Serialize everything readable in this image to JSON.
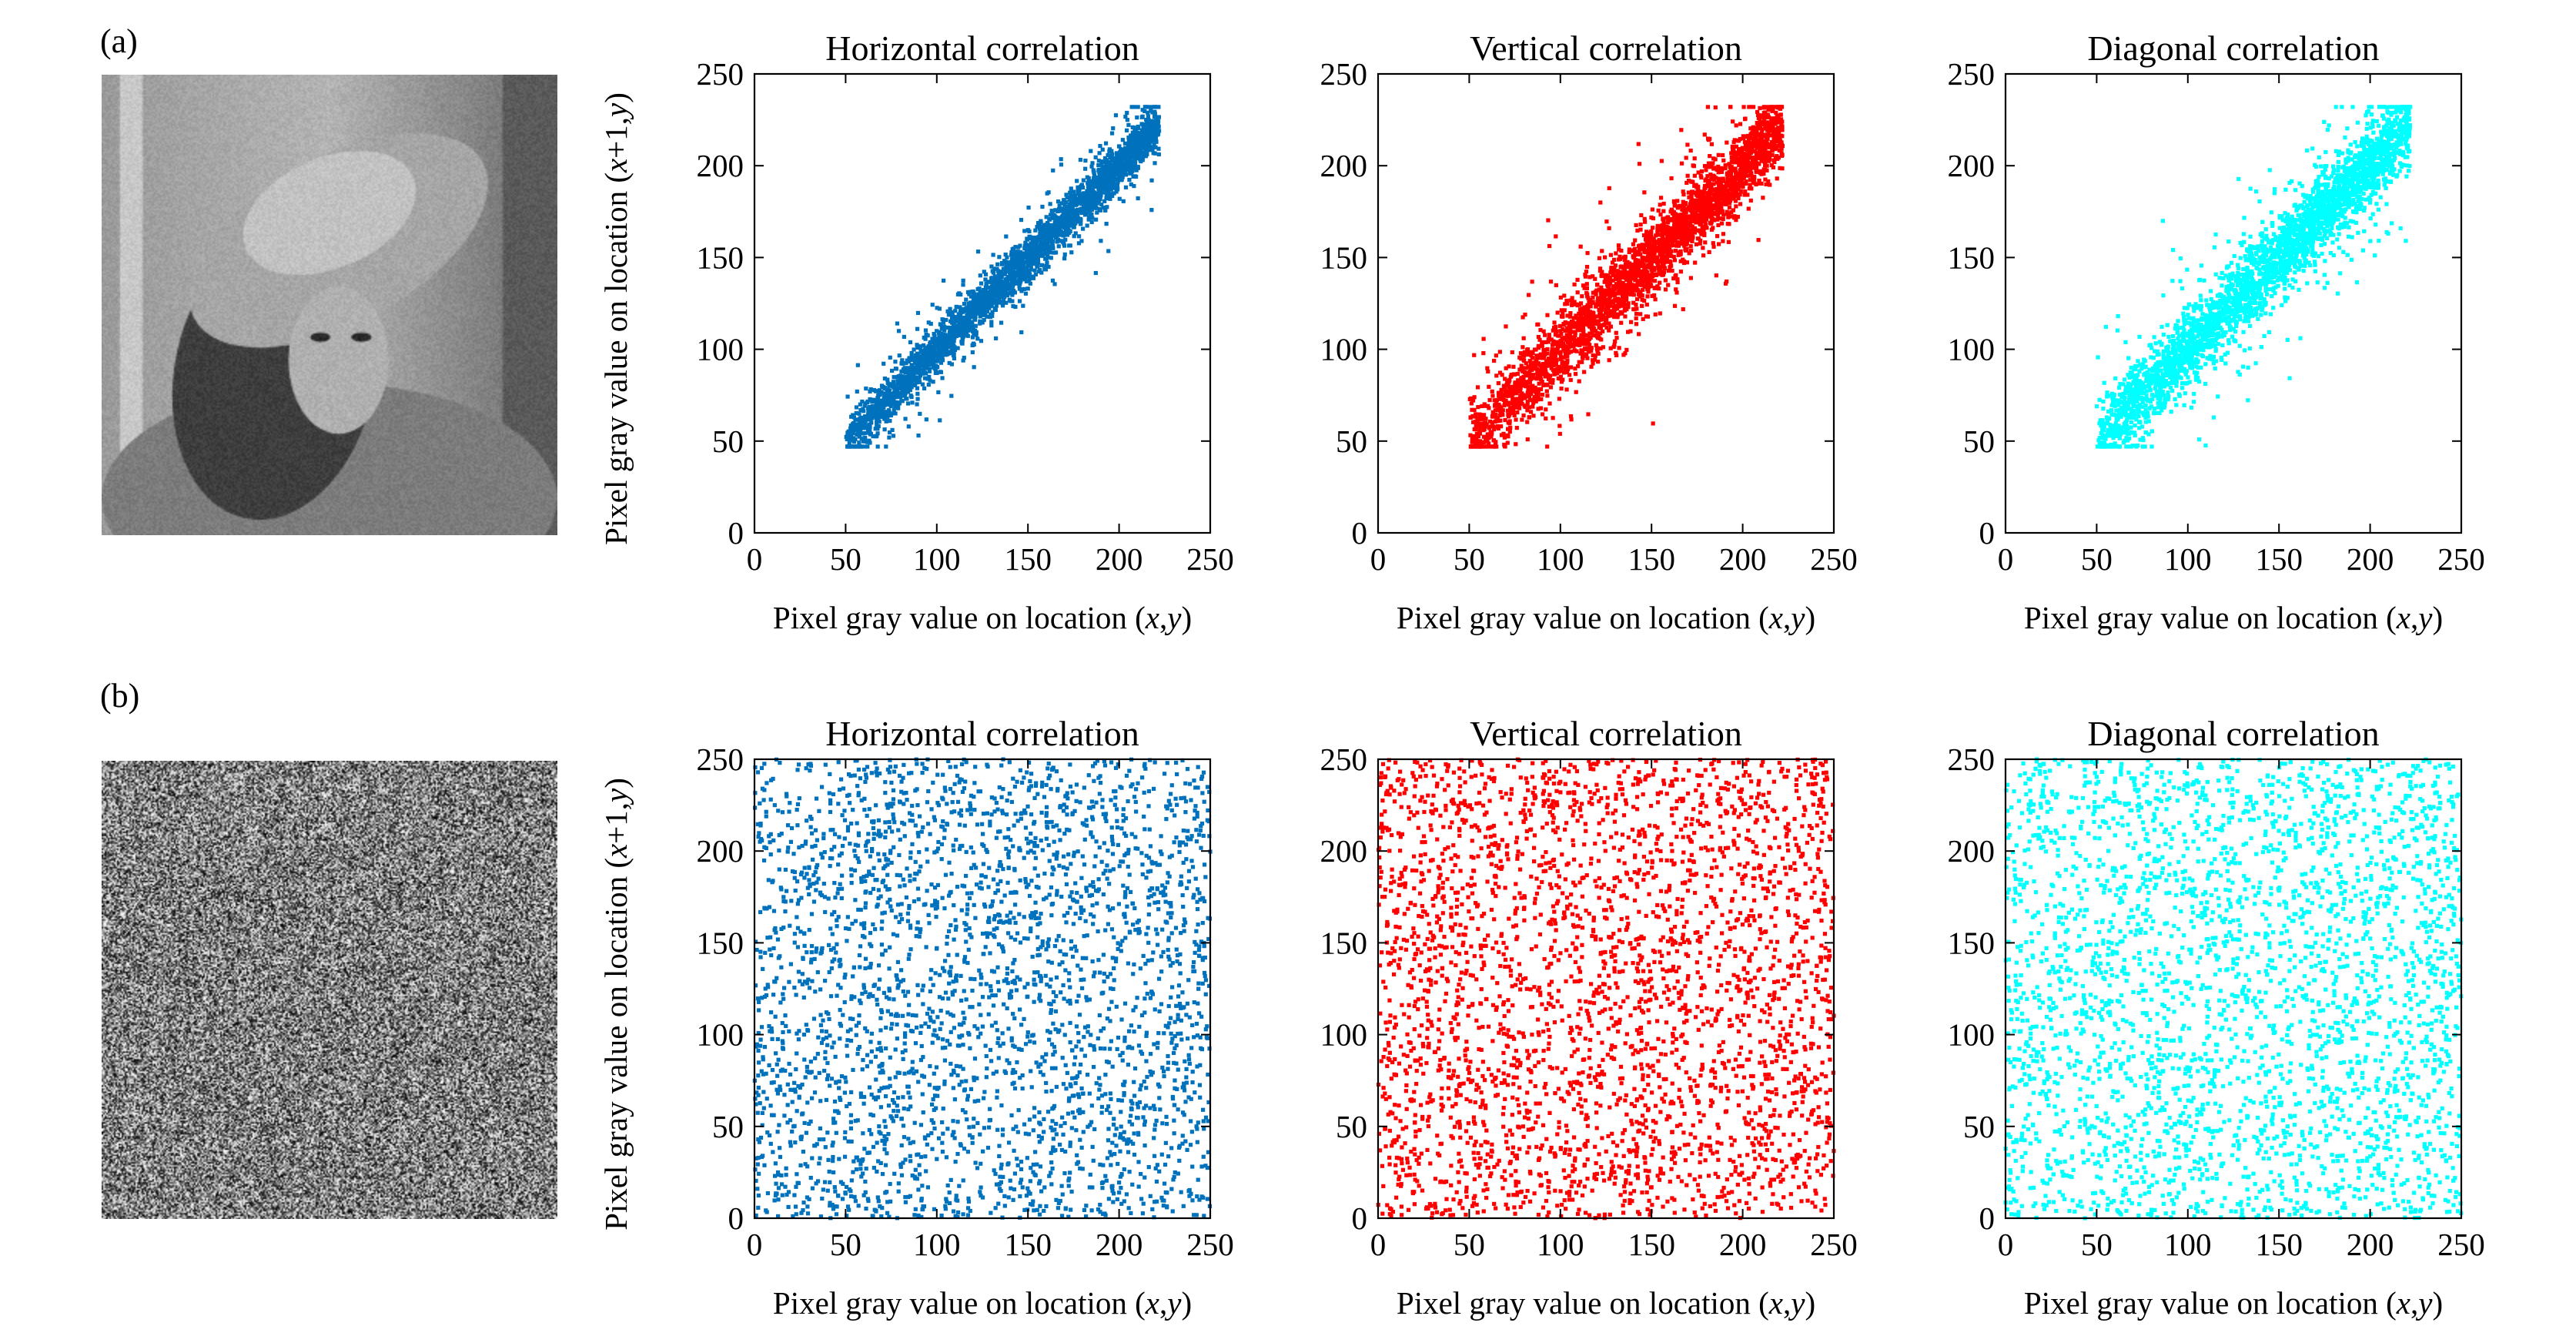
{
  "panels": [
    {
      "label": "(a)",
      "thumbnail": "lena-grayscale-photo",
      "tone": "photo"
    },
    {
      "label": "(b)",
      "thumbnail": "encrypted-noise-image",
      "tone": "noise"
    }
  ],
  "chart_data": [
    {
      "type": "scatter",
      "panel": "(a)",
      "title": "Horizontal correlation",
      "xlabel": "Pixel gray value on location (x,y)",
      "ylabel": "Pixel gray value on location (x+1,y)",
      "xlim": [
        0,
        250
      ],
      "ylim": [
        0,
        250
      ],
      "xticks": [
        0,
        50,
        100,
        150,
        200,
        250
      ],
      "yticks": [
        0,
        50,
        100,
        150,
        200,
        250
      ],
      "color": "#0072BD",
      "distribution": "correlated along y=x, dense band 50-225",
      "n_points": 3000
    },
    {
      "type": "scatter",
      "panel": "(a)",
      "title": "Vertical correlation",
      "xlabel": "Pixel gray value on location (x,y)",
      "ylabel": "",
      "xlim": [
        0,
        250
      ],
      "ylim": [
        0,
        250
      ],
      "xticks": [
        0,
        50,
        100,
        150,
        200,
        250
      ],
      "yticks": [
        0,
        50,
        100,
        150,
        200,
        250
      ],
      "color": "#FF0000",
      "distribution": "correlated along y=x, wider spread 50-230",
      "n_points": 3000
    },
    {
      "type": "scatter",
      "panel": "(a)",
      "title": "Diagonal correlation",
      "xlabel": "Pixel gray value on location (x,y)",
      "ylabel": "",
      "xlim": [
        0,
        250
      ],
      "ylim": [
        0,
        250
      ],
      "xticks": [
        0,
        50,
        100,
        150,
        200,
        250
      ],
      "yticks": [
        0,
        50,
        100,
        150,
        200,
        250
      ],
      "color": "#00FFFF",
      "distribution": "correlated along y=x, wider spread 50-225",
      "n_points": 3000
    },
    {
      "type": "scatter",
      "panel": "(b)",
      "title": "Horizontal correlation",
      "xlabel": "Pixel gray value on location (x,y)",
      "ylabel": "Pixel gray value on location (x+1,y)",
      "xlim": [
        0,
        250
      ],
      "ylim": [
        0,
        250
      ],
      "xticks": [
        0,
        50,
        100,
        150,
        200,
        250
      ],
      "yticks": [
        0,
        50,
        100,
        150,
        200,
        250
      ],
      "color": "#0072BD",
      "distribution": "uniform over 0-250",
      "n_points": 3000
    },
    {
      "type": "scatter",
      "panel": "(b)",
      "title": "Vertical correlation",
      "xlabel": "Pixel gray value on location (x,y)",
      "ylabel": "",
      "xlim": [
        0,
        250
      ],
      "ylim": [
        0,
        250
      ],
      "xticks": [
        0,
        50,
        100,
        150,
        200,
        250
      ],
      "yticks": [
        0,
        50,
        100,
        150,
        200,
        250
      ],
      "color": "#FF0000",
      "distribution": "uniform over 0-250",
      "n_points": 3000
    },
    {
      "type": "scatter",
      "panel": "(b)",
      "title": "Diagonal correlation",
      "xlabel": "Pixel gray value on location (x,y)",
      "ylabel": "",
      "xlim": [
        0,
        250
      ],
      "ylim": [
        0,
        250
      ],
      "xticks": [
        0,
        50,
        100,
        150,
        200,
        250
      ],
      "yticks": [
        0,
        50,
        100,
        150,
        200,
        250
      ],
      "color": "#00FFFF",
      "distribution": "uniform over 0-250",
      "n_points": 3000
    }
  ]
}
